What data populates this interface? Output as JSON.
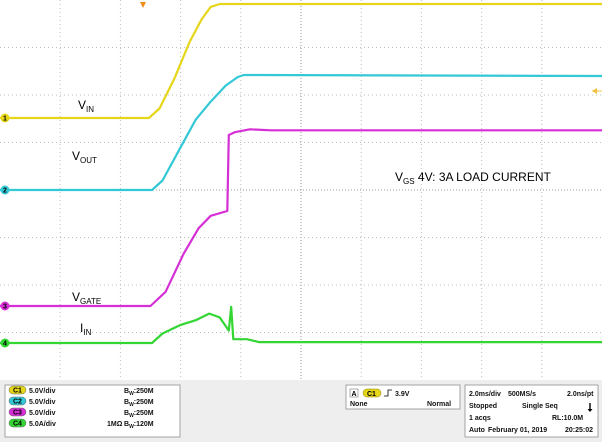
{
  "chart_data": {
    "type": "line",
    "title": "VGS 4V: 3A LOAD CURRENT",
    "title_main": "V",
    "title_sub": "GS",
    "title_rest": " 4V: 3A LOAD CURRENT",
    "x_unit": "ms",
    "time_per_div_ms": 2.0,
    "xlim_ms": [
      -8,
      12
    ],
    "divisions": {
      "x": 10,
      "y": 8
    },
    "grid": true,
    "series": [
      {
        "name": "VIN",
        "label_main": "V",
        "label_sub": "IN",
        "channel": 1,
        "color": "#e5d61a",
        "volts_per_div": 5.0,
        "y_unit": "V",
        "points": [
          [
            -8,
            0
          ],
          [
            -3.05,
            0
          ],
          [
            -2.7,
            1.0
          ],
          [
            -2.2,
            4.2
          ],
          [
            -1.7,
            8.0
          ],
          [
            -1.3,
            10.4
          ],
          [
            -1.0,
            11.7
          ],
          [
            -0.7,
            12.0
          ],
          [
            12,
            12.0
          ]
        ]
      },
      {
        "name": "VOUT",
        "label_main": "V",
        "label_sub": "OUT",
        "channel": 2,
        "color": "#33c8d6",
        "volts_per_div": 5.0,
        "y_unit": "V",
        "points": [
          [
            -8,
            0
          ],
          [
            -2.95,
            0
          ],
          [
            -2.6,
            1.0
          ],
          [
            -2.0,
            4.5
          ],
          [
            -1.5,
            7.4
          ],
          [
            -1.0,
            9.3
          ],
          [
            -0.5,
            11.0
          ],
          [
            -0.1,
            11.9
          ],
          [
            0.1,
            12.1
          ],
          [
            12,
            12.0
          ]
        ]
      },
      {
        "name": "VGATE",
        "label_main": "V",
        "label_sub": "GATE",
        "channel": 3,
        "color": "#d62fd6",
        "volts_per_div": 5.0,
        "y_unit": "V",
        "points": [
          [
            -8,
            0
          ],
          [
            -3.0,
            0
          ],
          [
            -2.5,
            1.5
          ],
          [
            -1.9,
            5.5
          ],
          [
            -1.4,
            8.2
          ],
          [
            -1.0,
            9.5
          ],
          [
            -0.45,
            10.0
          ],
          [
            -0.4,
            18.0
          ],
          [
            -0.2,
            18.3
          ],
          [
            0.3,
            18.6
          ],
          [
            1.0,
            18.5
          ],
          [
            12,
            18.5
          ]
        ]
      },
      {
        "name": "IIN",
        "label_main": "I",
        "label_sub": "IN",
        "channel": 4,
        "color": "#33d633",
        "volts_per_div": 5.0,
        "y_unit": "A",
        "points": [
          [
            -8,
            0
          ],
          [
            -2.95,
            0
          ],
          [
            -2.6,
            1.0
          ],
          [
            -2.0,
            1.9
          ],
          [
            -1.5,
            2.4
          ],
          [
            -1.05,
            3.1
          ],
          [
            -0.7,
            2.7
          ],
          [
            -0.4,
            1.3
          ],
          [
            -0.32,
            3.8
          ],
          [
            -0.25,
            0.4
          ],
          [
            0.2,
            0.4
          ],
          [
            0.6,
            0.1
          ],
          [
            12,
            0.1
          ]
        ]
      }
    ]
  },
  "settings_panel": {
    "channels": [
      {
        "badge": "C1",
        "scale": "5.0V/div",
        "coupling": "",
        "bw": "B",
        "bw_sub": "W",
        "bw_val": ":250M"
      },
      {
        "badge": "C2",
        "scale": "5.0V/div",
        "coupling": "",
        "bw": "B",
        "bw_sub": "W",
        "bw_val": ":250M"
      },
      {
        "badge": "C3",
        "scale": "5.0V/div",
        "coupling": "",
        "bw": "B",
        "bw_sub": "W",
        "bw_val": ":250M"
      },
      {
        "badge": "C4",
        "scale": "5.0A/div",
        "coupling": "1MΩ",
        "bw": "B",
        "bw_sub": "W",
        "bw_val": ":120M"
      }
    ],
    "trigger": {
      "mode_letter": "A",
      "source": "C1",
      "level": "3.9V",
      "type": "None",
      "mode": "Normal"
    },
    "acquisition": {
      "time_per_div": "2.0ms/div",
      "sample_rate": "500MS/s",
      "resolution": "2.0ns/pt",
      "state": "Stopped",
      "sequence": "Single Seq",
      "acqs": "1 acqs",
      "record_length": "RL:10.0M",
      "auto": "Auto",
      "date": "February 01, 2019",
      "time": "20:25:02"
    }
  }
}
